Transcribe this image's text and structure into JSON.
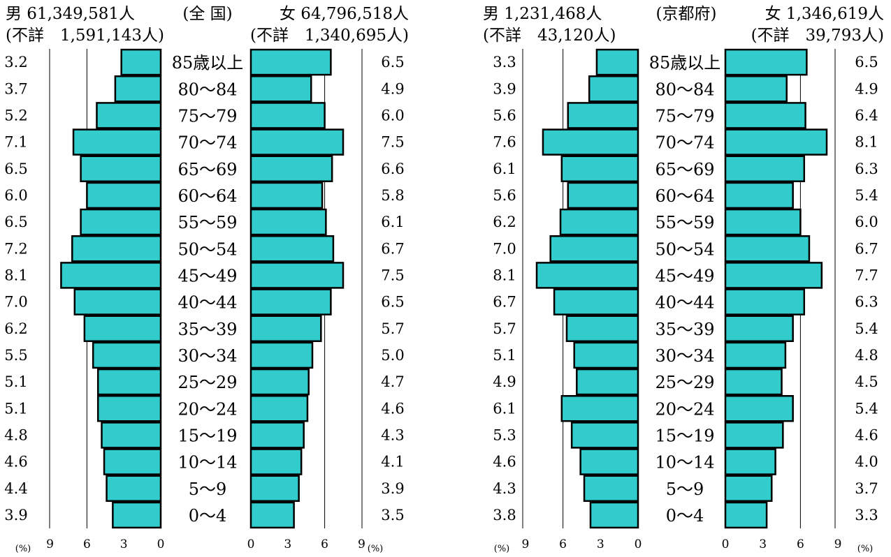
{
  "chart_data": [
    {
      "type": "bar",
      "title": "(全 国)",
      "male_total": "男 61,349,581人",
      "male_unknown": "(不詳　1,591,143人)",
      "female_total": "女 64,796,518人",
      "female_unknown": "(不詳　1,340,695人)",
      "percent_unit": "(%)",
      "xlim": [
        0,
        9
      ],
      "x_ticks": [
        "9",
        "6",
        "3",
        "0"
      ],
      "x_ticks_female": [
        "0",
        "3",
        "6",
        "9"
      ],
      "categories": [
        "85歳以上",
        "80～84",
        "75～79",
        "70～74",
        "65～69",
        "60～64",
        "55～59",
        "50～54",
        "45～49",
        "40～44",
        "35～39",
        "30～34",
        "25～29",
        "20～24",
        "15～19",
        "10～14",
        "5～9",
        "0～4"
      ],
      "male_values": [
        3.2,
        3.7,
        5.2,
        7.1,
        6.5,
        6.0,
        6.5,
        7.2,
        8.1,
        7.0,
        6.2,
        5.5,
        5.1,
        5.1,
        4.8,
        4.6,
        4.4,
        3.9
      ],
      "female_values": [
        6.5,
        4.9,
        6.0,
        7.5,
        6.6,
        5.8,
        6.1,
        6.7,
        7.5,
        6.5,
        5.7,
        5.0,
        4.7,
        4.6,
        4.3,
        4.1,
        3.9,
        3.5
      ],
      "male_labels": [
        "3.2",
        "3.7",
        "5.2",
        "7.1",
        "6.5",
        "6.0",
        "6.5",
        "7.2",
        "8.1",
        "7.0",
        "6.2",
        "5.5",
        "5.1",
        "5.1",
        "4.8",
        "4.6",
        "4.4",
        "3.9"
      ],
      "female_labels": [
        "6.5",
        "4.9",
        "6.0",
        "7.5",
        "6.6",
        "5.8",
        "6.1",
        "6.7",
        "7.5",
        "6.5",
        "5.7",
        "5.0",
        "4.7",
        "4.6",
        "4.3",
        "4.1",
        "3.9",
        "3.5"
      ],
      "gridlines": [
        6
      ],
      "bar_color": "#33cccc"
    },
    {
      "type": "bar",
      "title": "(京都府)",
      "male_total": "男 1,231,468人",
      "male_unknown": "(不詳　43,120人)",
      "female_total": "女 1,346,619人",
      "female_unknown": "(不詳　39,793人)",
      "percent_unit": "(%)",
      "xlim": [
        0,
        9
      ],
      "x_ticks": [
        "9",
        "6",
        "3",
        "0"
      ],
      "x_ticks_female": [
        "0",
        "3",
        "6",
        "9"
      ],
      "categories": [
        "85歳以上",
        "80～84",
        "75～79",
        "70～74",
        "65～69",
        "60～64",
        "55～59",
        "50～54",
        "45～49",
        "40～44",
        "35～39",
        "30～34",
        "25～29",
        "20～24",
        "15～19",
        "10～14",
        "5～9",
        "0～4"
      ],
      "male_values": [
        3.3,
        3.9,
        5.6,
        7.6,
        6.1,
        5.6,
        6.2,
        7.0,
        8.1,
        6.7,
        5.7,
        5.1,
        4.9,
        6.1,
        5.3,
        4.6,
        4.3,
        3.8
      ],
      "female_values": [
        6.5,
        4.9,
        6.4,
        8.1,
        6.3,
        5.4,
        6.0,
        6.7,
        7.7,
        6.3,
        5.4,
        4.8,
        4.5,
        5.4,
        4.6,
        4.0,
        3.7,
        3.3
      ],
      "male_labels": [
        "3.3",
        "3.9",
        "5.6",
        "7.6",
        "6.1",
        "5.6",
        "6.2",
        "7.0",
        "8.1",
        "6.7",
        "5.7",
        "5.1",
        "4.9",
        "6.1",
        "5.3",
        "4.6",
        "4.3",
        "3.8"
      ],
      "female_labels": [
        "6.5",
        "4.9",
        "6.4",
        "8.1",
        "6.3",
        "5.4",
        "6.0",
        "6.7",
        "7.7",
        "6.3",
        "5.4",
        "4.8",
        "4.5",
        "5.4",
        "4.6",
        "4.0",
        "3.7",
        "3.3"
      ],
      "gridlines": [
        6
      ],
      "bar_color": "#33cccc"
    }
  ]
}
